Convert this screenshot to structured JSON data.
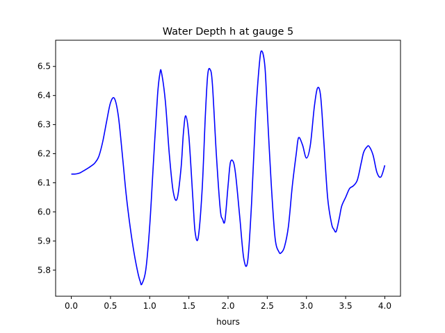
{
  "chart_data": {
    "type": "line",
    "title": "Water Depth h at gauge 5",
    "xlabel": "hours",
    "ylabel": "",
    "xlim": [
      -0.2,
      4.2
    ],
    "ylim": [
      5.71,
      6.59
    ],
    "xticks": [
      0.0,
      0.5,
      1.0,
      1.5,
      2.0,
      2.5,
      3.0,
      3.5,
      4.0
    ],
    "xtick_labels": [
      "0.0",
      "0.5",
      "1.0",
      "1.5",
      "2.0",
      "2.5",
      "3.0",
      "3.5",
      "4.0"
    ],
    "yticks": [
      5.8,
      5.9,
      6.0,
      6.1,
      6.2,
      6.3,
      6.4,
      6.5
    ],
    "ytick_labels": [
      "5.8",
      "5.9",
      "6.0",
      "6.1",
      "6.2",
      "6.3",
      "6.4",
      "6.5"
    ],
    "grid": false,
    "series": [
      {
        "color": "#0000ff",
        "x": [
          0.0,
          0.05,
          0.1,
          0.15,
          0.2,
          0.25,
          0.3,
          0.35,
          0.4,
          0.45,
          0.5,
          0.55,
          0.6,
          0.65,
          0.7,
          0.75,
          0.8,
          0.85,
          0.88,
          0.9,
          0.95,
          1.0,
          1.05,
          1.1,
          1.13,
          1.15,
          1.2,
          1.25,
          1.3,
          1.35,
          1.4,
          1.43,
          1.46,
          1.5,
          1.55,
          1.58,
          1.62,
          1.67,
          1.71,
          1.74,
          1.77,
          1.8,
          1.85,
          1.9,
          1.93,
          1.96,
          2.0,
          2.03,
          2.07,
          2.1,
          2.15,
          2.2,
          2.25,
          2.3,
          2.35,
          2.4,
          2.43,
          2.47,
          2.5,
          2.55,
          2.6,
          2.65,
          2.68,
          2.72,
          2.77,
          2.82,
          2.87,
          2.9,
          2.95,
          3.0,
          3.05,
          3.1,
          3.14,
          3.18,
          3.22,
          3.27,
          3.32,
          3.35,
          3.38,
          3.42,
          3.45,
          3.5,
          3.55,
          3.6,
          3.65,
          3.7,
          3.73,
          3.77,
          3.8,
          3.85,
          3.9,
          3.95,
          4.0
        ],
        "y": [
          6.13,
          6.13,
          6.133,
          6.14,
          6.148,
          6.157,
          6.168,
          6.19,
          6.24,
          6.31,
          6.375,
          6.39,
          6.33,
          6.2,
          6.06,
          5.95,
          5.86,
          5.79,
          5.76,
          5.752,
          5.8,
          5.95,
          6.18,
          6.4,
          6.475,
          6.48,
          6.38,
          6.2,
          6.07,
          6.045,
          6.15,
          6.27,
          6.33,
          6.26,
          6.05,
          5.93,
          5.913,
          6.08,
          6.33,
          6.47,
          6.49,
          6.44,
          6.2,
          6.01,
          5.975,
          5.97,
          6.09,
          6.17,
          6.17,
          6.12,
          5.98,
          5.84,
          5.83,
          6.03,
          6.32,
          6.51,
          6.553,
          6.5,
          6.35,
          6.1,
          5.91,
          5.862,
          5.86,
          5.88,
          5.95,
          6.09,
          6.2,
          6.255,
          6.23,
          6.185,
          6.23,
          6.36,
          6.425,
          6.4,
          6.25,
          6.05,
          5.96,
          5.94,
          5.933,
          5.98,
          6.02,
          6.05,
          6.08,
          6.09,
          6.11,
          6.17,
          6.205,
          6.223,
          6.225,
          6.195,
          6.135,
          6.12,
          6.16
        ]
      }
    ]
  }
}
